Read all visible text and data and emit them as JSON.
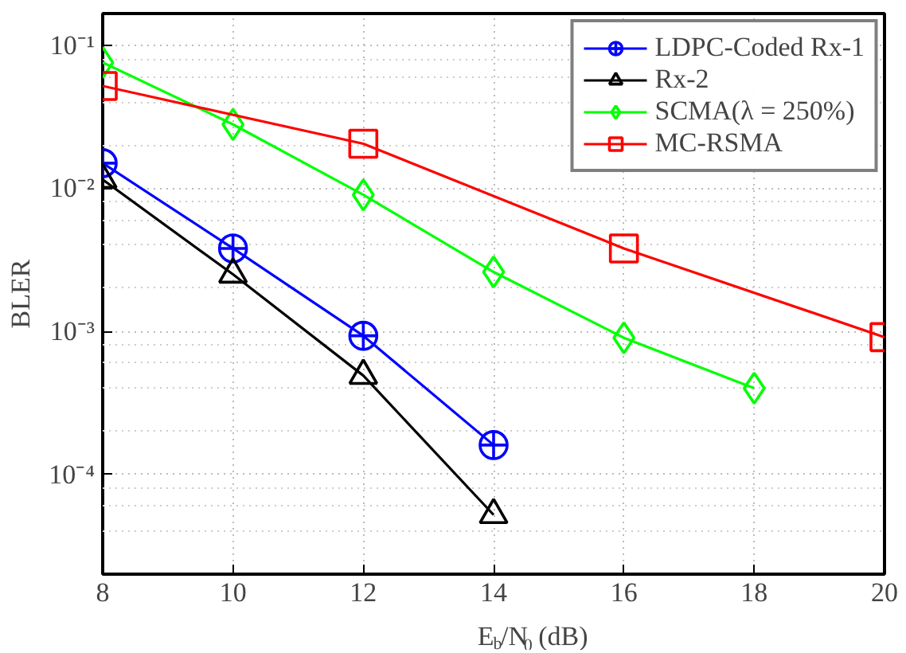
{
  "chart_data": {
    "type": "line",
    "xlabel": "E$_{b}$/N$_{0}$ (dB)",
    "ylabel": "BLER",
    "series": [
      {
        "name": "LDPC-Coded Rx-1",
        "color": "#0000ff",
        "marker": "circle",
        "x": [
          8,
          10,
          12,
          14
        ],
        "values": [
          0.015,
          0.0038,
          0.00093,
          0.00016
        ]
      },
      {
        "name": "Rx-2",
        "color": "#000000",
        "marker": "triangle",
        "x": [
          8,
          10,
          12,
          14
        ],
        "values": [
          0.0115,
          0.0025,
          0.00049,
          5.2e-05
        ]
      },
      {
        "name": "SCMA(λ = 250%)",
        "color": "#00ff00",
        "marker": "diamond",
        "x": [
          8,
          10,
          12,
          14,
          16,
          18
        ],
        "values": [
          0.076,
          0.028,
          0.009,
          0.0026,
          0.0009,
          0.0004
        ]
      },
      {
        "name": "MC-RSMA",
        "color": "#ff0000",
        "marker": "square",
        "x": [
          8,
          12,
          16,
          20
        ],
        "values": [
          0.052,
          0.0205,
          0.0038,
          0.00091
        ]
      }
    ],
    "xlim": [
      8,
      20
    ],
    "xticks": [
      8,
      10,
      12,
      14,
      16,
      18,
      20
    ],
    "ylim": [
      2e-05,
      0.167
    ],
    "yticks": [
      {
        "value": 0.1,
        "label": "10⁻¹"
      },
      {
        "value": 0.01,
        "label": "10⁻²"
      },
      {
        "value": 0.001,
        "label": "10⁻³"
      },
      {
        "value": 0.0001,
        "label": "10⁻⁴"
      }
    ],
    "log": "y",
    "grid": true,
    "legend": "top right",
    "line_style": "solid"
  }
}
